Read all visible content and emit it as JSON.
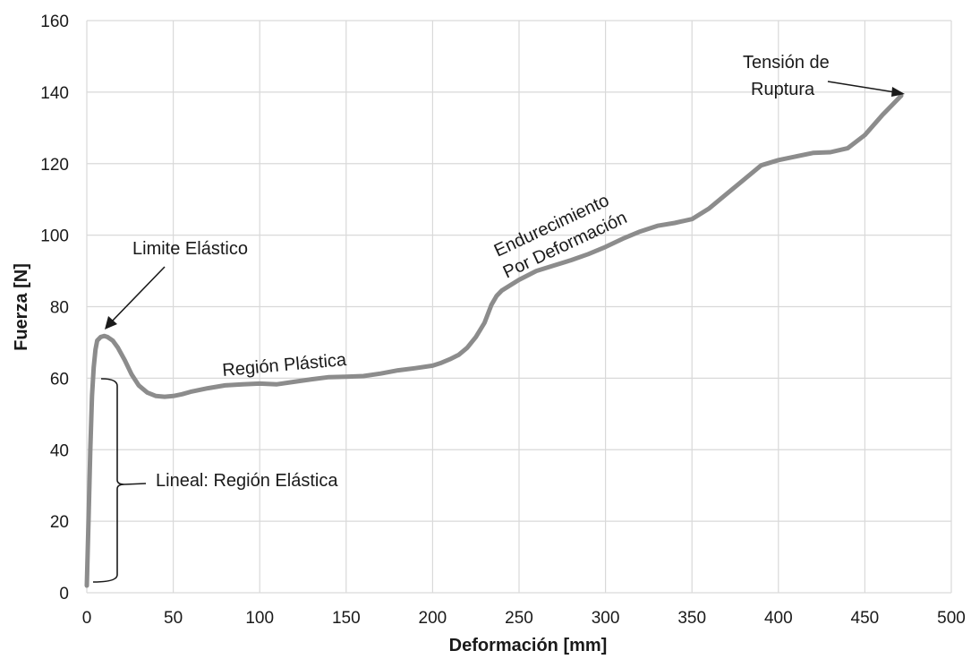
{
  "chart_data": {
    "type": "line",
    "title": "",
    "xlabel": "Deformación [mm]",
    "ylabel": "Fuerza [N]",
    "xlim": [
      0,
      500
    ],
    "ylim": [
      0,
      160
    ],
    "xticks": [
      0,
      50,
      100,
      150,
      200,
      250,
      300,
      350,
      400,
      450,
      500
    ],
    "yticks": [
      0,
      20,
      40,
      60,
      80,
      100,
      120,
      140,
      160
    ],
    "xtick_labels": [
      "0",
      "50",
      "100",
      "150",
      "200",
      "250",
      "300",
      "350",
      "400",
      "450",
      "500"
    ],
    "ytick_labels": [
      "0",
      "20",
      "40",
      "60",
      "80",
      "100",
      "120",
      "140",
      "160"
    ],
    "grid": true,
    "legend": "none",
    "series_color": "#8c8c8c",
    "series": [
      {
        "x": [
          0,
          1,
          2,
          3,
          4,
          5,
          6,
          8,
          10,
          12,
          15,
          18,
          22,
          26,
          30,
          35,
          40,
          45,
          50,
          55,
          60,
          70,
          80,
          90,
          100,
          110,
          120,
          130,
          140,
          150,
          160,
          170,
          180,
          190,
          200,
          205,
          210,
          215,
          220,
          225,
          230,
          234,
          237,
          240,
          245,
          250,
          260,
          270,
          280,
          290,
          300,
          310,
          320,
          330,
          340,
          350,
          360,
          370,
          380,
          390,
          400,
          410,
          420,
          430,
          440,
          450,
          460,
          466,
          471
        ],
        "y": [
          2,
          20,
          40,
          55,
          63,
          68,
          70.5,
          71.5,
          71.8,
          71.5,
          70.5,
          68.5,
          65,
          61,
          58,
          56,
          55,
          54.8,
          55,
          55.5,
          56.2,
          57.2,
          58,
          58.3,
          58.5,
          58.3,
          59,
          59.7,
          60.3,
          60.4,
          60.6,
          61.3,
          62.2,
          62.8,
          63.5,
          64.3,
          65.3,
          66.5,
          68.5,
          71.5,
          75.5,
          80.5,
          83,
          84.5,
          86,
          87.5,
          90,
          91.5,
          93,
          94.7,
          96.7,
          99,
          101,
          102.6,
          103.4,
          104.5,
          107.5,
          111.5,
          115.5,
          119.5,
          121,
          122,
          123,
          123.2,
          124.3,
          128,
          133.5,
          136.5,
          139
        ]
      }
    ],
    "annotations": [
      {
        "text": "Tensión de",
        "points_to": [
          470,
          139
        ]
      },
      {
        "text": "Ruptura",
        "points_to": [
          470,
          139
        ]
      },
      {
        "text": "Limite Elástico",
        "points_to": [
          11,
          72
        ]
      },
      {
        "text": "Región Plástica"
      },
      {
        "text": "Endurecimiento"
      },
      {
        "text": "Por Deformación"
      },
      {
        "text": "Lineal: Región Elástica",
        "bracket_y": [
          3,
          60
        ]
      }
    ]
  }
}
